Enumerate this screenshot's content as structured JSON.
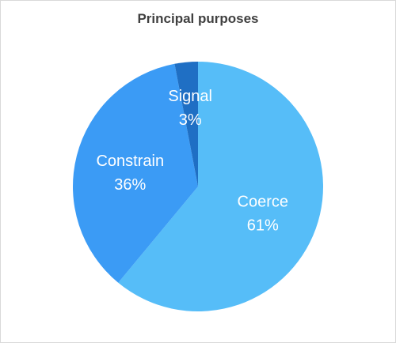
{
  "chart_data": {
    "type": "pie",
    "title": "Principal purposes",
    "slices": [
      {
        "name": "Coerce",
        "value": 61,
        "label": "61%",
        "color": "#56bdf8"
      },
      {
        "name": "Constrain",
        "value": 36,
        "label": "36%",
        "color": "#3b9bf5"
      },
      {
        "name": "Signal",
        "value": 3,
        "label": "3%",
        "color": "#1f6fc4"
      }
    ],
    "legend": "none",
    "start_angle_deg": 0,
    "direction": "clockwise"
  }
}
